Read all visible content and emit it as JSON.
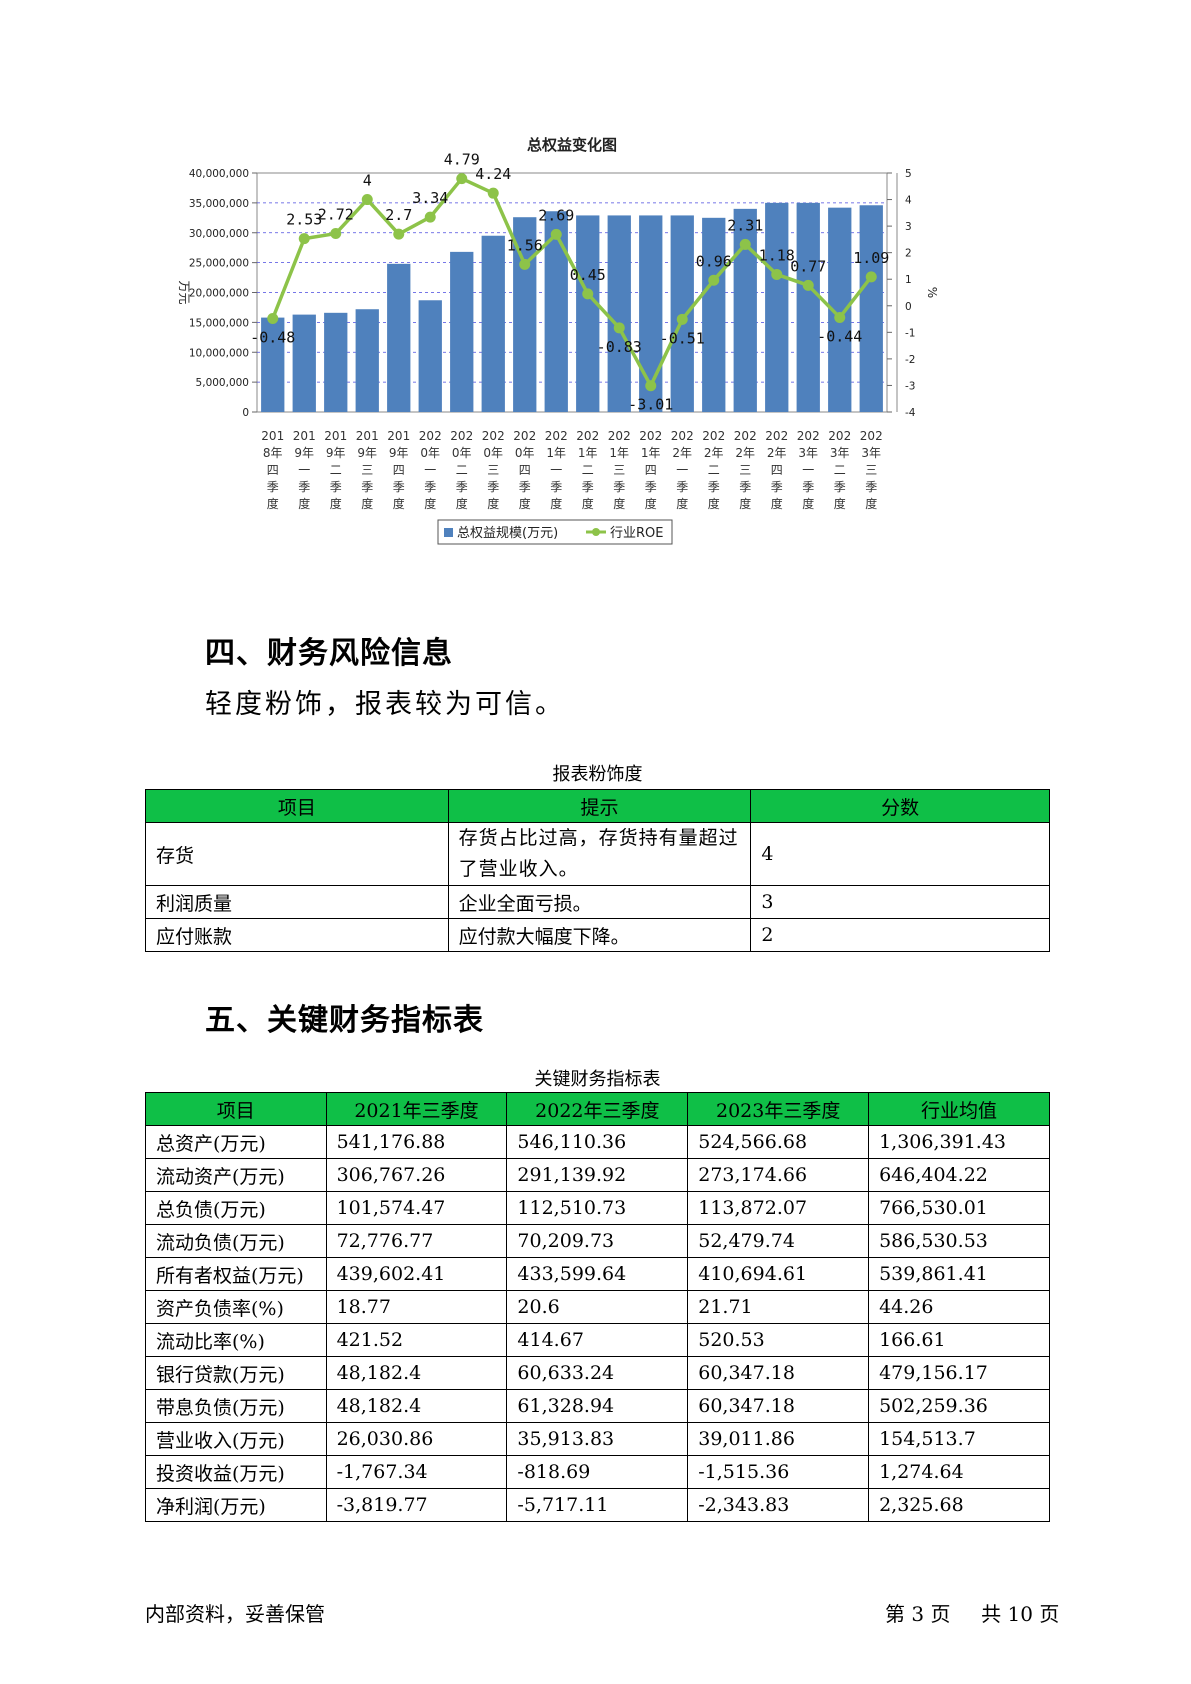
{
  "chart_data": {
    "type": "bar",
    "title": "总权益变化图",
    "ylabel": "万元",
    "ylabel_right": "%",
    "y_ticks": [
      "40,000,000",
      "35,000,000",
      "30,000,000",
      "25,000,000",
      "20,000,000",
      "15,000,000",
      "10,000,000",
      "5,000,000",
      "0"
    ],
    "y2_ticks": [
      "5",
      "4",
      "3",
      "2",
      "1",
      "0",
      "-1",
      "-2",
      "-3",
      "-4"
    ],
    "ylim": [
      0,
      40000000
    ],
    "y2lim": [
      -4,
      5
    ],
    "categories": [
      [
        "201",
        "8年",
        "四",
        "季",
        "度"
      ],
      [
        "201",
        "9年",
        "一",
        "季",
        "度"
      ],
      [
        "201",
        "9年",
        "二",
        "季",
        "度"
      ],
      [
        "201",
        "9年",
        "三",
        "季",
        "度"
      ],
      [
        "201",
        "9年",
        "四",
        "季",
        "度"
      ],
      [
        "202",
        "0年",
        "一",
        "季",
        "度"
      ],
      [
        "202",
        "0年",
        "二",
        "季",
        "度"
      ],
      [
        "202",
        "0年",
        "三",
        "季",
        "度"
      ],
      [
        "202",
        "0年",
        "四",
        "季",
        "度"
      ],
      [
        "202",
        "1年",
        "一",
        "季",
        "度"
      ],
      [
        "202",
        "1年",
        "二",
        "季",
        "度"
      ],
      [
        "202",
        "1年",
        "三",
        "季",
        "度"
      ],
      [
        "202",
        "1年",
        "四",
        "季",
        "度"
      ],
      [
        "202",
        "2年",
        "一",
        "季",
        "度"
      ],
      [
        "202",
        "2年",
        "二",
        "季",
        "度"
      ],
      [
        "202",
        "2年",
        "三",
        "季",
        "度"
      ],
      [
        "202",
        "2年",
        "四",
        "季",
        "度"
      ],
      [
        "202",
        "3年",
        "一",
        "季",
        "度"
      ],
      [
        "202",
        "3年",
        "二",
        "季",
        "度"
      ],
      [
        "202",
        "3年",
        "三",
        "季",
        "度"
      ]
    ],
    "series": [
      {
        "name": "总权益规模(万元)",
        "kind": "bar",
        "color": "#4f81bd",
        "values": [
          15800000,
          16300000,
          16600000,
          17200000,
          24800000,
          18700000,
          26800000,
          29500000,
          32600000,
          33600000,
          32900000,
          32900000,
          32900000,
          32900000,
          32500000,
          34000000,
          35000000,
          35000000,
          34200000,
          34600000
        ]
      },
      {
        "name": "行业ROE",
        "kind": "line",
        "color": "#8dc349",
        "values": [
          -0.48,
          2.53,
          2.72,
          4,
          2.7,
          3.34,
          4.79,
          4.24,
          1.56,
          2.69,
          0.45,
          -0.83,
          -3.01,
          -0.51,
          0.96,
          2.31,
          1.18,
          0.77,
          -0.44,
          1.09
        ],
        "labels": [
          "-0.48",
          "2.53",
          "2.72",
          "4",
          "2.7",
          "3.34",
          "4.79",
          "4.24",
          "1.56",
          "2.69",
          "0.45",
          "-0.83",
          "-3.01",
          "-0.51",
          "0.96",
          "2.31",
          "1.18",
          "0.77",
          "-0.44",
          "1.09"
        ]
      }
    ]
  },
  "section4": {
    "heading": "四、财务风险信息",
    "paragraph": "轻度粉饰，报表较为可信。",
    "table_caption": "报表粉饰度",
    "headers": [
      "项目",
      "提示",
      "分数"
    ],
    "rows": [
      {
        "item": "存货",
        "hint": "存货占比过高，存货持有量超过了营业收入。",
        "score": "4"
      },
      {
        "item": "利润质量",
        "hint": "企业全面亏损。",
        "score": "3"
      },
      {
        "item": "应付账款",
        "hint": "应付款大幅度下降。",
        "score": "2"
      }
    ]
  },
  "section5": {
    "heading": "五、关键财务指标表",
    "table_caption": "关键财务指标表",
    "headers": [
      "项目",
      "2021年三季度",
      "2022年三季度",
      "2023年三季度",
      "行业均值"
    ],
    "rows": [
      [
        "总资产(万元)",
        "541,176.88",
        "546,110.36",
        "524,566.68",
        "1,306,391.43"
      ],
      [
        "流动资产(万元)",
        "306,767.26",
        "291,139.92",
        "273,174.66",
        "646,404.22"
      ],
      [
        "总负债(万元)",
        "101,574.47",
        "112,510.73",
        "113,872.07",
        "766,530.01"
      ],
      [
        "流动负债(万元)",
        "72,776.77",
        "70,209.73",
        "52,479.74",
        "586,530.53"
      ],
      [
        "所有者权益(万元)",
        "439,602.41",
        "433,599.64",
        "410,694.61",
        "539,861.41"
      ],
      [
        "资产负债率(%)",
        "18.77",
        "20.6",
        "21.71",
        "44.26"
      ],
      [
        "流动比率(%)",
        "421.52",
        "414.67",
        "520.53",
        "166.61"
      ],
      [
        "银行贷款(万元)",
        "48,182.4",
        "60,633.24",
        "60,347.18",
        "479,156.17"
      ],
      [
        "带息负债(万元)",
        "48,182.4",
        "61,328.94",
        "60,347.18",
        "502,259.36"
      ],
      [
        "营业收入(万元)",
        "26,030.86",
        "35,913.83",
        "39,011.86",
        "154,513.7"
      ],
      [
        "投资收益(万元)",
        "-1,767.34",
        "-818.69",
        "-1,515.36",
        "1,274.64"
      ],
      [
        "净利润(万元)",
        "-3,819.77",
        "-5,717.11",
        "-2,343.83",
        "2,325.68"
      ]
    ]
  },
  "footer": {
    "left": "内部资料，妥善保管",
    "page_label": "第 3 页",
    "total_label": "共 10 页"
  }
}
